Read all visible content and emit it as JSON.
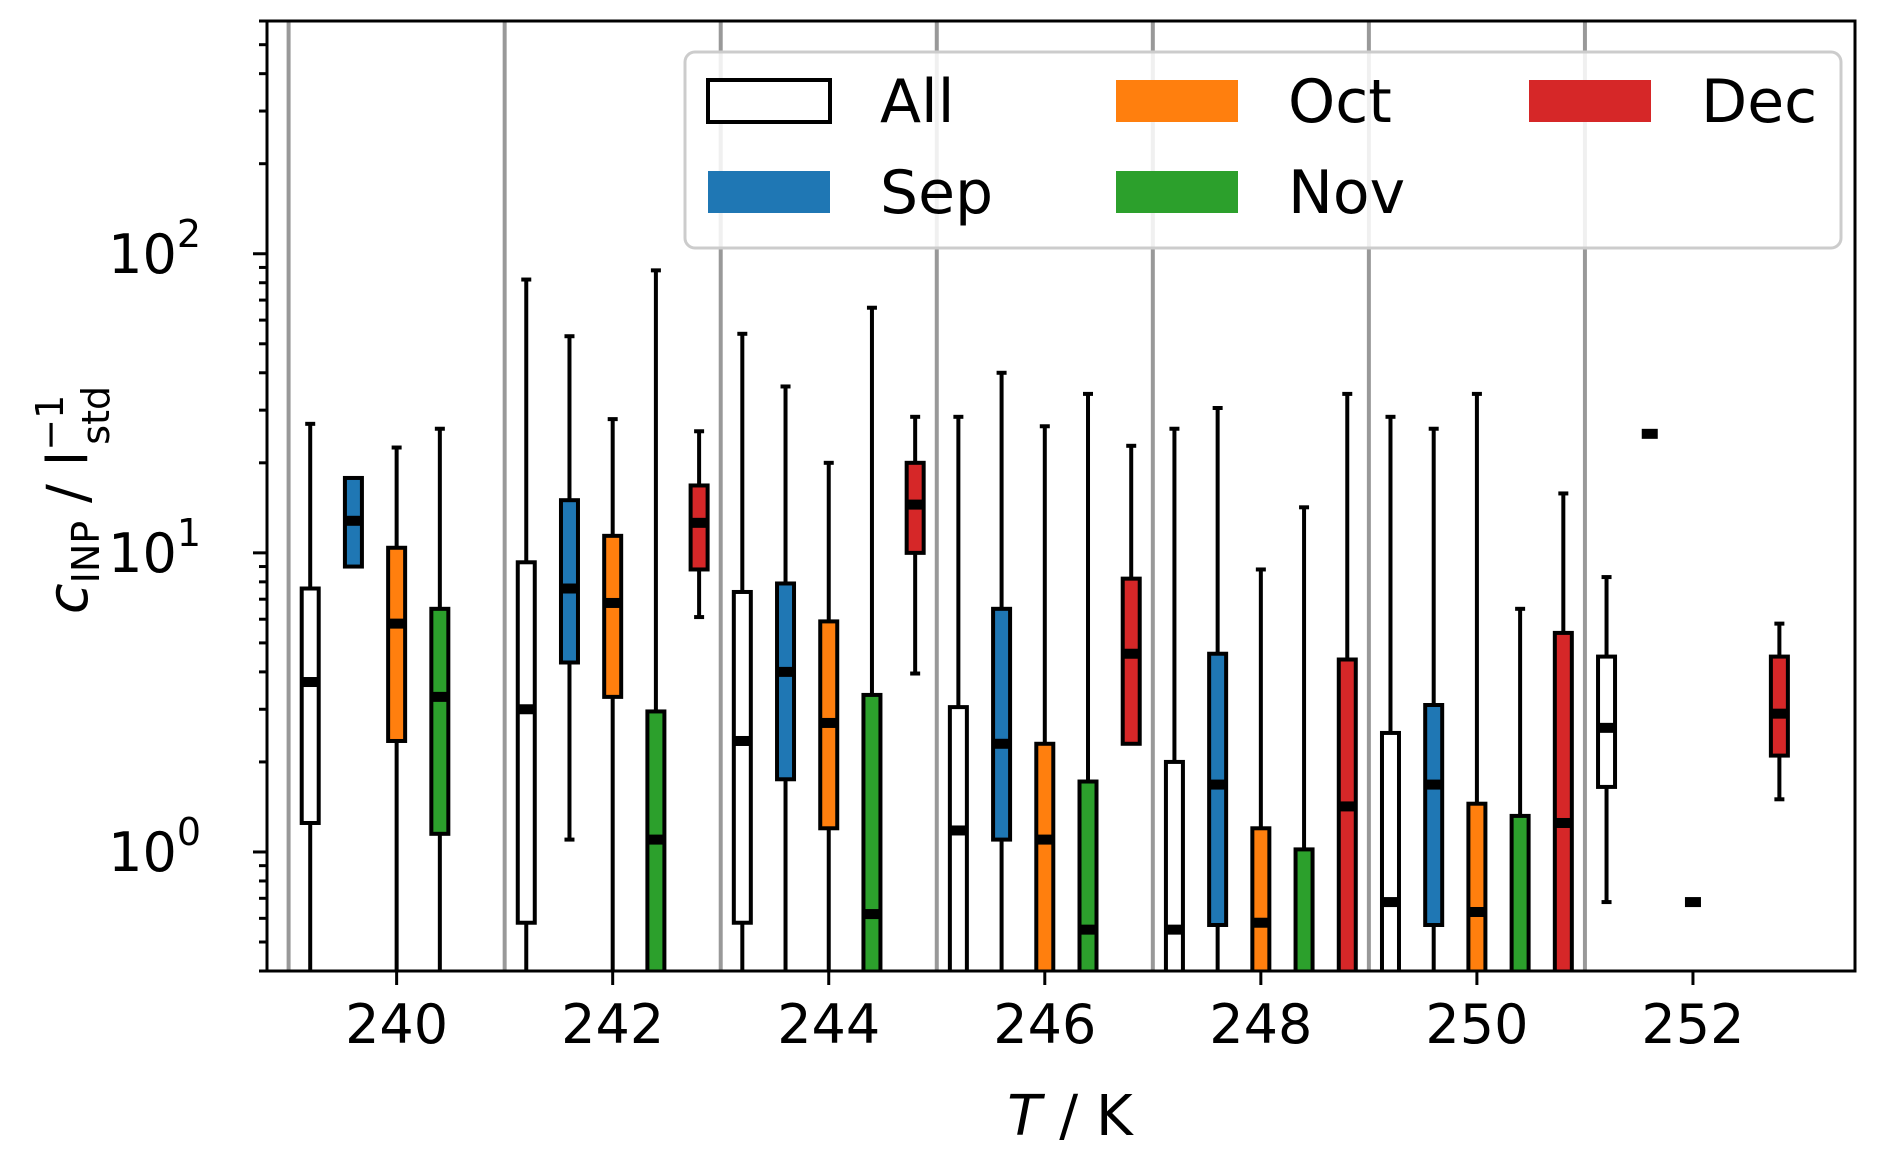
{
  "chart_data": {
    "type": "box",
    "xlabel": {
      "italic": "T",
      "rest": " / K"
    },
    "ylabel": {
      "c": "c",
      "c_sub": "INP",
      "mid": " / l",
      "l_sup": "−1",
      "l_sub": "std"
    },
    "yscale": "log",
    "ylim": [
      0.4,
      600
    ],
    "xlim": [
      238.8,
      253.5
    ],
    "xticks": [
      240,
      242,
      244,
      246,
      248,
      250,
      252
    ],
    "xtick_labels": [
      "240",
      "242",
      "244",
      "246",
      "248",
      "250",
      "252"
    ],
    "yticks": [
      {
        "value": 1,
        "base": "10",
        "exp": "0"
      },
      {
        "value": 10,
        "base": "10",
        "exp": "1"
      },
      {
        "value": 100,
        "base": "10",
        "exp": "2"
      }
    ],
    "bin_separators": [
      239,
      241,
      243,
      245,
      247,
      249,
      251
    ],
    "grid": false,
    "legend": {
      "placement": "top-right",
      "entries": [
        {
          "key": "All",
          "label": "All",
          "color": "#ffffff"
        },
        {
          "key": "Oct",
          "label": "Oct",
          "color": "#ff7f0e"
        },
        {
          "key": "Dec",
          "label": "Dec",
          "color": "#d62728"
        },
        {
          "key": "Sep",
          "label": "Sep",
          "color": "#1f77b4"
        },
        {
          "key": "Nov",
          "label": "Nov",
          "color": "#2ca02c"
        }
      ]
    },
    "series_colors": {
      "All": "#ffffff",
      "Sep": "#1f77b4",
      "Oct": "#ff7f0e",
      "Nov": "#2ca02c",
      "Dec": "#d62728"
    },
    "boxes": [
      {
        "group": "All",
        "x": 239.2,
        "whislo": 0.3,
        "q1": 1.25,
        "med": 3.7,
        "q3": 7.6,
        "whishi": 27
      },
      {
        "group": "Sep",
        "x": 239.6,
        "whislo": 9.0,
        "q1": 9.0,
        "med": 12.8,
        "q3": 17.8,
        "whishi": 17.8
      },
      {
        "group": "Oct",
        "x": 240.0,
        "whislo": 0.3,
        "q1": 2.35,
        "med": 5.8,
        "q3": 10.4,
        "whishi": 22.5
      },
      {
        "group": "Nov",
        "x": 240.4,
        "whislo": 0.3,
        "q1": 1.15,
        "med": 3.3,
        "q3": 6.5,
        "whishi": 26
      },
      {
        "group": "All",
        "x": 241.2,
        "whislo": 0.3,
        "q1": 0.58,
        "med": 3.0,
        "q3": 9.3,
        "whishi": 82
      },
      {
        "group": "Sep",
        "x": 241.6,
        "whislo": 1.1,
        "q1": 4.3,
        "med": 7.6,
        "q3": 15.0,
        "whishi": 53
      },
      {
        "group": "Oct",
        "x": 242.0,
        "whislo": 0.3,
        "q1": 3.3,
        "med": 6.8,
        "q3": 11.4,
        "whishi": 28
      },
      {
        "group": "Nov",
        "x": 242.4,
        "whislo": 0.3,
        "q1": 0.3,
        "med": 1.1,
        "q3": 2.95,
        "whishi": 88
      },
      {
        "group": "Dec",
        "x": 242.8,
        "whislo": 6.1,
        "q1": 8.8,
        "med": 12.6,
        "q3": 16.8,
        "whishi": 25.5
      },
      {
        "group": "All",
        "x": 243.2,
        "whislo": 0.3,
        "q1": 0.58,
        "med": 2.35,
        "q3": 7.4,
        "whishi": 54
      },
      {
        "group": "Sep",
        "x": 243.6,
        "whislo": 0.3,
        "q1": 1.75,
        "med": 4.0,
        "q3": 7.9,
        "whishi": 36
      },
      {
        "group": "Oct",
        "x": 244.0,
        "whislo": 0.3,
        "q1": 1.2,
        "med": 2.7,
        "q3": 5.9,
        "whishi": 20
      },
      {
        "group": "Nov",
        "x": 244.4,
        "whislo": 0.3,
        "q1": 0.3,
        "med": 0.62,
        "q3": 3.35,
        "whishi": 66
      },
      {
        "group": "Dec",
        "x": 244.8,
        "whislo": 3.95,
        "q1": 10.0,
        "med": 14.5,
        "q3": 20.0,
        "whishi": 28.5
      },
      {
        "group": "All",
        "x": 245.2,
        "whislo": 0.3,
        "q1": 0.3,
        "med": 1.18,
        "q3": 3.05,
        "whishi": 28.5
      },
      {
        "group": "Sep",
        "x": 245.6,
        "whislo": 0.3,
        "q1": 1.1,
        "med": 2.3,
        "q3": 6.5,
        "whishi": 40
      },
      {
        "group": "Oct",
        "x": 246.0,
        "whislo": 0.3,
        "q1": 0.3,
        "med": 1.1,
        "q3": 2.3,
        "whishi": 26.5
      },
      {
        "group": "Nov",
        "x": 246.4,
        "whislo": 0.3,
        "q1": 0.3,
        "med": 0.55,
        "q3": 1.72,
        "whishi": 34
      },
      {
        "group": "Dec",
        "x": 246.8,
        "whislo": 2.3,
        "q1": 2.3,
        "med": 4.6,
        "q3": 8.2,
        "whishi": 22.8
      },
      {
        "group": "All",
        "x": 247.2,
        "whislo": 0.3,
        "q1": 0.3,
        "med": 0.55,
        "q3": 2.0,
        "whishi": 26
      },
      {
        "group": "Sep",
        "x": 247.6,
        "whislo": 0.3,
        "q1": 0.57,
        "med": 1.68,
        "q3": 4.6,
        "whishi": 30.5
      },
      {
        "group": "Oct",
        "x": 248.0,
        "whislo": 0.3,
        "q1": 0.3,
        "med": 0.58,
        "q3": 1.2,
        "whishi": 8.8
      },
      {
        "group": "Nov",
        "x": 248.4,
        "whislo": 0.3,
        "q1": 0.3,
        "med": 0.3,
        "q3": 1.02,
        "whishi": 14.2
      },
      {
        "group": "Dec",
        "x": 248.8,
        "whislo": 0.3,
        "q1": 0.3,
        "med": 1.42,
        "q3": 4.4,
        "whishi": 34
      },
      {
        "group": "All",
        "x": 249.2,
        "whislo": 0.3,
        "q1": 0.3,
        "med": 0.68,
        "q3": 2.5,
        "whishi": 28.5
      },
      {
        "group": "Sep",
        "x": 249.6,
        "whislo": 0.3,
        "q1": 0.57,
        "med": 1.68,
        "q3": 3.1,
        "whishi": 26
      },
      {
        "group": "Oct",
        "x": 250.0,
        "whislo": 0.3,
        "q1": 0.3,
        "med": 0.63,
        "q3": 1.45,
        "whishi": 34
      },
      {
        "group": "Nov",
        "x": 250.4,
        "whislo": 0.3,
        "q1": 0.3,
        "med": 0.3,
        "q3": 1.32,
        "whishi": 6.5
      },
      {
        "group": "Dec",
        "x": 250.8,
        "whislo": 0.3,
        "q1": 0.3,
        "med": 1.25,
        "q3": 5.4,
        "whishi": 15.8
      },
      {
        "group": "All",
        "x": 251.2,
        "whislo": 0.68,
        "q1": 1.65,
        "med": 2.6,
        "q3": 4.5,
        "whishi": 8.3
      },
      {
        "group": "Sep",
        "x": 251.6,
        "whislo": 25,
        "q1": 25,
        "med": 25,
        "q3": 25,
        "whishi": 25
      },
      {
        "group": "Oct",
        "x": 252.0,
        "whislo": 0.68,
        "q1": 0.68,
        "med": 0.68,
        "q3": 0.68,
        "whishi": 0.68
      },
      {
        "group": "Dec",
        "x": 252.8,
        "whislo": 1.5,
        "q1": 2.1,
        "med": 2.9,
        "q3": 4.5,
        "whishi": 5.8
      }
    ]
  }
}
